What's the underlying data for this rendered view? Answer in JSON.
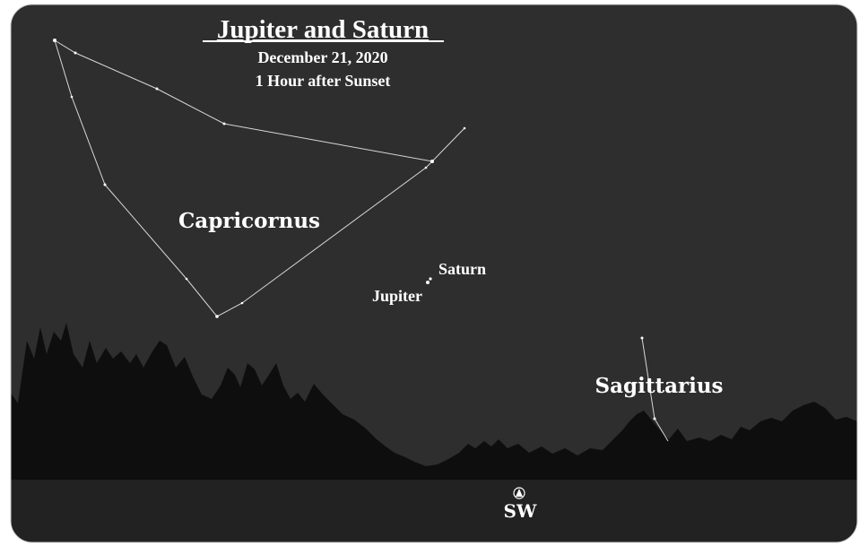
{
  "header": {
    "title": "Jupiter and Saturn",
    "date": "December 21, 2020",
    "time": "1 Hour after Sunset"
  },
  "labels": {
    "capricornus": "Capricornus",
    "saturn": "Saturn",
    "jupiter": "Jupiter",
    "sagittarius": "Sagittarius"
  },
  "direction": "SW"
}
